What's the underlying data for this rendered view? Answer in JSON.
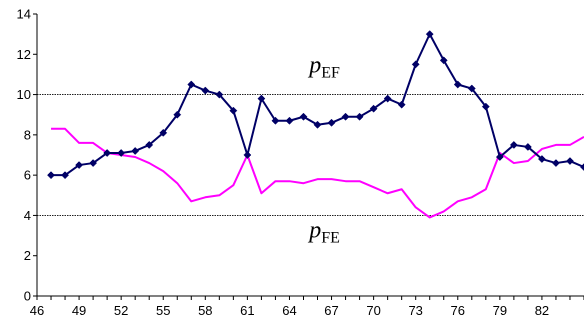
{
  "chart_data": {
    "type": "line",
    "title": "",
    "xlabel": "",
    "ylabel": "",
    "xlim": [
      46,
      85
    ],
    "ylim": [
      0,
      14
    ],
    "x_ticks": [
      46,
      49,
      52,
      55,
      58,
      61,
      64,
      67,
      70,
      73,
      76,
      79,
      82
    ],
    "y_ticks": [
      0,
      2,
      4,
      6,
      8,
      10,
      12,
      14
    ],
    "grid_lines_y": [
      4,
      10
    ],
    "legend": "none",
    "x": [
      47,
      48,
      49,
      50,
      51,
      52,
      53,
      54,
      55,
      56,
      57,
      58,
      59,
      60,
      61,
      62,
      63,
      64,
      65,
      66,
      67,
      68,
      69,
      70,
      71,
      72,
      73,
      74,
      75,
      76,
      77,
      78,
      79,
      80,
      81,
      82,
      83,
      84,
      85
    ],
    "series": [
      {
        "name": "p_EF",
        "color": "#000066",
        "marker": "diamond",
        "values": [
          6.0,
          6.0,
          6.5,
          6.6,
          7.1,
          7.1,
          7.2,
          7.5,
          8.1,
          9.0,
          10.5,
          10.2,
          10.0,
          9.2,
          7.0,
          9.8,
          8.7,
          8.7,
          8.9,
          8.5,
          8.6,
          8.9,
          8.9,
          9.3,
          9.8,
          9.5,
          11.5,
          13.0,
          11.7,
          10.5,
          10.3,
          9.4,
          6.9,
          7.5,
          7.4,
          6.8,
          6.6,
          6.7,
          6.4
        ]
      },
      {
        "name": "p_FE",
        "color": "#FF00FF",
        "marker": "none",
        "values": [
          8.3,
          8.3,
          7.6,
          7.6,
          7.1,
          7.0,
          6.9,
          6.6,
          6.2,
          5.6,
          4.7,
          4.9,
          5.0,
          5.5,
          7.0,
          5.1,
          5.7,
          5.7,
          5.6,
          5.8,
          5.8,
          5.7,
          5.7,
          5.4,
          5.1,
          5.3,
          4.4,
          3.9,
          4.2,
          4.7,
          4.9,
          5.3,
          7.1,
          6.6,
          6.7,
          7.3,
          7.5,
          7.5,
          7.9
        ]
      }
    ],
    "annotations": [
      {
        "base": "p",
        "sub": "EF",
        "x": 66.5,
        "y": 11.1
      },
      {
        "base": "p",
        "sub": "FE",
        "x": 66.5,
        "y": 2.9
      }
    ]
  }
}
